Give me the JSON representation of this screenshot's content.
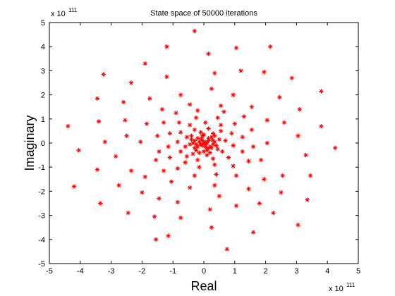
{
  "chart_data": {
    "type": "scatter",
    "title": "State space of 50000 iterations",
    "xlabel": "Real",
    "ylabel": "Imaginary",
    "x_exponent_base": "x 10",
    "x_exponent_power": "111",
    "y_exponent_base": "x 10",
    "y_exponent_power": "111",
    "xlim": [
      -5,
      5
    ],
    "ylim": [
      -5,
      5
    ],
    "xticks": [
      "-5",
      "-4",
      "-3",
      "-2",
      "-1",
      "0",
      "1",
      "2",
      "3",
      "4",
      "5"
    ],
    "yticks": [
      "5",
      "4",
      "3",
      "2",
      "1",
      "0",
      "-1",
      "-2",
      "-3",
      "-4",
      "-5"
    ],
    "grid": false,
    "marker": "*",
    "marker_color": "#ff0000",
    "series": [
      {
        "points": [
          [
            -0.3,
            4.65
          ],
          [
            0.15,
            3.7
          ],
          [
            1.05,
            3.95
          ],
          [
            2.15,
            4.0
          ],
          [
            -1.2,
            4.0
          ],
          [
            -1.9,
            3.3
          ],
          [
            -3.25,
            2.85
          ],
          [
            -2.35,
            2.5
          ],
          [
            -1.2,
            2.75
          ],
          [
            0.35,
            2.9
          ],
          [
            1.2,
            3.0
          ],
          [
            1.95,
            2.95
          ],
          [
            2.85,
            2.7
          ],
          [
            3.8,
            2.15
          ],
          [
            -3.45,
            1.85
          ],
          [
            -2.6,
            1.7
          ],
          [
            -1.75,
            1.85
          ],
          [
            -0.75,
            2.0
          ],
          [
            0.25,
            2.25
          ],
          [
            0.95,
            2.0
          ],
          [
            2.45,
            1.9
          ],
          [
            3.1,
            1.4
          ],
          [
            3.8,
            0.7
          ],
          [
            -4.4,
            0.7
          ],
          [
            -3.4,
            0.9
          ],
          [
            -2.55,
            0.95
          ],
          [
            2.6,
            0.85
          ],
          [
            3.05,
            0.3
          ],
          [
            -4.05,
            -0.3
          ],
          [
            -3.2,
            0.05
          ],
          [
            -2.5,
            0.3
          ],
          [
            3.3,
            -0.5
          ],
          [
            4.25,
            -0.2
          ],
          [
            -4.2,
            -1.8
          ],
          [
            -3.45,
            -1.1
          ],
          [
            -2.35,
            -1.15
          ],
          [
            -2.85,
            -0.55
          ],
          [
            2.55,
            -1.35
          ],
          [
            3.45,
            -1.35
          ],
          [
            3.35,
            -2.35
          ],
          [
            -3.35,
            -2.5
          ],
          [
            -2.75,
            -1.75
          ],
          [
            -2.0,
            -2.05
          ],
          [
            2.5,
            -2.05
          ],
          [
            -2.45,
            -2.9
          ],
          [
            -1.6,
            -3.05
          ],
          [
            -0.75,
            -3.1
          ],
          [
            0.2,
            -2.75
          ],
          [
            1.05,
            -2.6
          ],
          [
            1.8,
            -2.5
          ],
          [
            2.25,
            -2.9
          ],
          [
            3.05,
            -3.4
          ],
          [
            -1.55,
            -4.0
          ],
          [
            -1.15,
            -3.85
          ],
          [
            0.75,
            -4.4
          ],
          [
            0.25,
            -3.5
          ],
          [
            1.6,
            -3.7
          ],
          [
            -1.45,
            -2.3
          ],
          [
            -0.85,
            -2.45
          ],
          [
            0.5,
            -2.2
          ],
          [
            1.45,
            -1.9
          ],
          [
            1.95,
            -1.5
          ],
          [
            -1.9,
            -1.4
          ],
          [
            -1.55,
            -0.7
          ],
          [
            -2.05,
            0.05
          ],
          [
            -1.85,
            0.8
          ],
          [
            -1.35,
            1.4
          ],
          [
            -0.45,
            1.6
          ],
          [
            0.55,
            1.55
          ],
          [
            1.55,
            1.5
          ],
          [
            2.05,
            0.95
          ],
          [
            2.05,
            0.0
          ],
          [
            1.85,
            -0.7
          ],
          [
            -1.5,
            0.3
          ],
          [
            -1.3,
            0.85
          ],
          [
            -0.9,
            1.25
          ],
          [
            -0.2,
            1.35
          ],
          [
            0.65,
            1.3
          ],
          [
            1.3,
            1.1
          ],
          [
            1.55,
            0.55
          ],
          [
            1.6,
            -0.15
          ],
          [
            1.45,
            -0.75
          ],
          [
            1.05,
            -1.35
          ],
          [
            0.35,
            -1.75
          ],
          [
            -0.45,
            -1.85
          ],
          [
            -1.05,
            -1.6
          ],
          [
            -1.3,
            -1.15
          ],
          [
            -1.45,
            -0.35
          ],
          [
            -1.1,
            -0.6
          ],
          [
            -0.85,
            -1.05
          ],
          [
            -0.3,
            -1.35
          ],
          [
            0.4,
            -1.3
          ],
          [
            0.95,
            -0.95
          ],
          [
            1.25,
            -0.35
          ],
          [
            1.25,
            0.25
          ],
          [
            1.0,
            0.8
          ],
          [
            0.45,
            1.05
          ],
          [
            -0.25,
            1.05
          ],
          [
            -0.8,
            0.85
          ],
          [
            -1.1,
            0.4
          ],
          [
            -1.15,
            -0.15
          ],
          [
            -0.75,
            -0.35
          ],
          [
            -0.6,
            -0.8
          ],
          [
            -0.15,
            -1.0
          ],
          [
            0.35,
            -0.9
          ],
          [
            0.8,
            -0.6
          ],
          [
            0.95,
            -0.1
          ],
          [
            0.9,
            0.4
          ],
          [
            0.55,
            0.75
          ],
          [
            0.05,
            0.85
          ],
          [
            -0.45,
            0.75
          ],
          [
            -0.75,
            0.45
          ],
          [
            -0.85,
            0.05
          ],
          [
            -0.55,
            -0.55
          ],
          [
            -0.2,
            -0.7
          ],
          [
            0.3,
            -0.65
          ],
          [
            0.6,
            -0.35
          ],
          [
            0.7,
            0.1
          ],
          [
            0.55,
            0.5
          ],
          [
            0.15,
            0.6
          ],
          [
            -0.3,
            0.55
          ],
          [
            -0.55,
            0.25
          ],
          [
            -0.6,
            -0.15
          ],
          [
            -0.35,
            -0.45
          ],
          [
            0.1,
            -0.5
          ],
          [
            0.45,
            -0.25
          ],
          [
            0.5,
            0.15
          ],
          [
            0.3,
            0.4
          ],
          [
            -0.1,
            0.45
          ],
          [
            -0.4,
            0.3
          ],
          [
            -0.45,
            -0.05
          ],
          [
            -0.25,
            -0.3
          ],
          [
            0.1,
            -0.3
          ],
          [
            0.3,
            -0.05
          ],
          [
            0.25,
            0.25
          ],
          [
            -0.05,
            0.3
          ],
          [
            -0.3,
            0.1
          ],
          [
            -0.2,
            -0.15
          ],
          [
            0.05,
            -0.15
          ],
          [
            0.15,
            0.1
          ],
          [
            -0.05,
            0.1
          ],
          [
            0.0,
            0.0
          ],
          [
            -0.1,
            -0.05
          ],
          [
            0.1,
            0.0
          ],
          [
            0.05,
            0.05
          ],
          [
            -0.05,
            -0.1
          ],
          [
            -0.15,
            0.05
          ],
          [
            0.2,
            -0.15
          ],
          [
            -0.2,
            0.2
          ],
          [
            0.15,
            0.2
          ],
          [
            0.25,
            -0.2
          ],
          [
            -0.3,
            -0.2
          ],
          [
            0.35,
            0.05
          ],
          [
            -0.35,
            0.0
          ],
          [
            0.0,
            -0.35
          ],
          [
            0.0,
            0.35
          ],
          [
            0.4,
            -0.1
          ],
          [
            -0.15,
            -0.4
          ],
          [
            0.2,
            -0.4
          ],
          [
            -0.4,
            0.15
          ],
          [
            0.35,
            0.3
          ],
          [
            0.05,
            -0.05
          ],
          [
            -0.08,
            0.18
          ],
          [
            0.12,
            -0.22
          ],
          [
            -0.25,
            -0.05
          ],
          [
            0.28,
            0.12
          ]
        ]
      }
    ]
  }
}
